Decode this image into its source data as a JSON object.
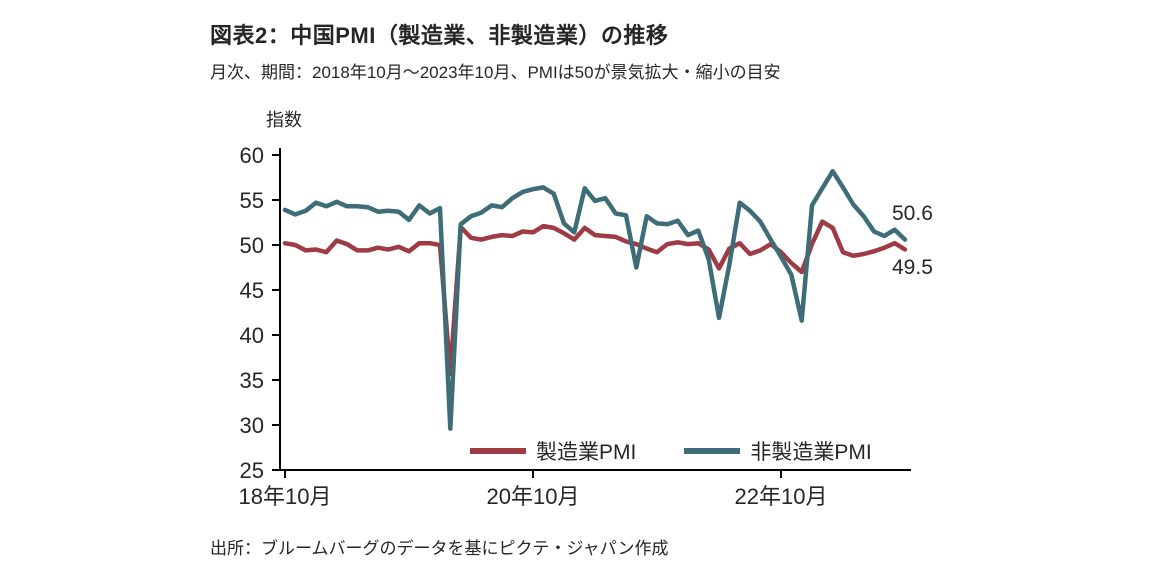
{
  "header": {
    "title": "図表2：中国PMI（製造業、非製造業）の推移",
    "subtitle": "月次、期間：2018年10月～2023年10月、PMIは50が景気拡大・縮小の目安"
  },
  "footer": {
    "source": "出所：ブルームバーグのデータを基にピクテ・ジャパン作成"
  },
  "chart_data": {
    "type": "line",
    "title": "図表2：中国PMI（製造業、非製造業）の推移",
    "xlabel": "",
    "ylabel": "指数",
    "ylim": [
      25,
      60
    ],
    "y_ticks": [
      60,
      55,
      50,
      45,
      40,
      35,
      30,
      25
    ],
    "x_ticks": [
      {
        "index": 0,
        "label": "18年10月"
      },
      {
        "index": 24,
        "label": "20年10月"
      },
      {
        "index": 48,
        "label": "22年10月"
      }
    ],
    "grid": false,
    "legend_position": "bottom-inside",
    "x": [
      "2018-10",
      "2018-11",
      "2018-12",
      "2019-01",
      "2019-02",
      "2019-03",
      "2019-04",
      "2019-05",
      "2019-06",
      "2019-07",
      "2019-08",
      "2019-09",
      "2019-10",
      "2019-11",
      "2019-12",
      "2020-01",
      "2020-02",
      "2020-03",
      "2020-04",
      "2020-05",
      "2020-06",
      "2020-07",
      "2020-08",
      "2020-09",
      "2020-10",
      "2020-11",
      "2020-12",
      "2021-01",
      "2021-02",
      "2021-03",
      "2021-04",
      "2021-05",
      "2021-06",
      "2021-07",
      "2021-08",
      "2021-09",
      "2021-10",
      "2021-11",
      "2021-12",
      "2022-01",
      "2022-02",
      "2022-03",
      "2022-04",
      "2022-05",
      "2022-06",
      "2022-07",
      "2022-08",
      "2022-09",
      "2022-10",
      "2022-11",
      "2022-12",
      "2023-01",
      "2023-02",
      "2023-03",
      "2023-04",
      "2023-05",
      "2023-06",
      "2023-07",
      "2023-08",
      "2023-09",
      "2023-10"
    ],
    "series": [
      {
        "name": "製造業PMI",
        "color": "#9e3b44",
        "values": [
          50.2,
          50.0,
          49.4,
          49.5,
          49.2,
          50.5,
          50.1,
          49.4,
          49.4,
          49.7,
          49.5,
          49.8,
          49.3,
          50.2,
          50.2,
          50.0,
          35.7,
          52.0,
          50.8,
          50.6,
          50.9,
          51.1,
          51.0,
          51.5,
          51.4,
          52.1,
          51.9,
          51.3,
          50.6,
          51.9,
          51.1,
          51.0,
          50.9,
          50.4,
          50.1,
          49.6,
          49.2,
          50.1,
          50.3,
          50.1,
          50.2,
          49.5,
          47.4,
          49.6,
          50.2,
          49.0,
          49.4,
          50.1,
          49.2,
          48.0,
          47.0,
          50.1,
          52.6,
          51.9,
          49.2,
          48.8,
          49.0,
          49.3,
          49.7,
          50.2,
          49.5
        ]
      },
      {
        "name": "非製造業PMI",
        "color": "#3e6d78",
        "values": [
          53.9,
          53.4,
          53.8,
          54.7,
          54.3,
          54.8,
          54.3,
          54.3,
          54.2,
          53.7,
          53.8,
          53.7,
          52.8,
          54.4,
          53.5,
          54.1,
          29.6,
          52.3,
          53.2,
          53.6,
          54.4,
          54.2,
          55.2,
          55.9,
          56.2,
          56.4,
          55.7,
          52.4,
          51.4,
          56.3,
          54.9,
          55.2,
          53.5,
          53.3,
          47.5,
          53.2,
          52.4,
          52.3,
          52.7,
          51.1,
          51.6,
          48.4,
          41.9,
          47.8,
          54.7,
          53.8,
          52.6,
          50.6,
          48.7,
          46.7,
          41.6,
          54.4,
          56.3,
          58.2,
          56.4,
          54.5,
          53.2,
          51.5,
          51.0,
          51.7,
          50.6
        ]
      }
    ],
    "annotations": [
      {
        "text": "50.6",
        "series": "非製造業PMI"
      },
      {
        "text": "49.5",
        "series": "製造業PMI"
      }
    ]
  }
}
